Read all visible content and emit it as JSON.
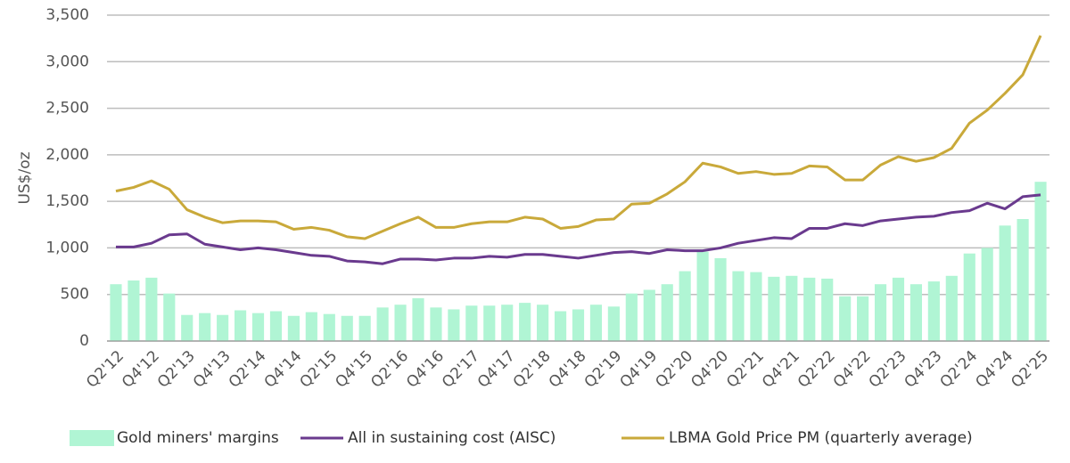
{
  "chart_data": {
    "type": "bar-line",
    "y_label": "US$/oz",
    "categories": [
      "Q2'12",
      null,
      "Q4'12",
      null,
      "Q2'13",
      null,
      "Q4'13",
      null,
      "Q2'14",
      null,
      "Q4'14",
      null,
      "Q2'15",
      null,
      "Q4'15",
      null,
      "Q2'16",
      null,
      "Q4'16",
      null,
      "Q2'17",
      null,
      "Q4'17",
      null,
      "Q2'18",
      null,
      "Q4'18",
      null,
      "Q2'19",
      null,
      "Q4'19",
      null,
      "Q2'20",
      null,
      "Q4'20",
      null,
      "Q2'21",
      null,
      "Q4'21",
      null,
      "Q2'22",
      null,
      "Q4'22",
      null,
      "Q2'23",
      null,
      "Q4'23",
      null,
      "Q2'24",
      null,
      "Q4'24",
      null,
      "Q2'25"
    ],
    "series": [
      {
        "name": "Gold miners' margins",
        "type": "bar",
        "color": "#b0f5d4",
        "values": [
          610,
          650,
          680,
          510,
          280,
          300,
          280,
          330,
          300,
          320,
          270,
          310,
          290,
          270,
          270,
          360,
          390,
          460,
          360,
          340,
          380,
          380,
          390,
          410,
          390,
          320,
          340,
          390,
          370,
          510,
          550,
          610,
          750,
          960,
          890,
          750,
          740,
          690,
          700,
          680,
          670,
          480,
          480,
          610,
          680,
          610,
          640,
          700,
          940,
          1000,
          1240,
          1310,
          1710
        ]
      },
      {
        "name": "All in sustaining cost (AISC)",
        "type": "line",
        "color": "#6a3a8e",
        "values": [
          1010,
          1010,
          1050,
          1140,
          1150,
          1040,
          1010,
          980,
          1000,
          980,
          950,
          920,
          910,
          860,
          850,
          830,
          880,
          880,
          870,
          890,
          890,
          910,
          900,
          930,
          930,
          910,
          890,
          920,
          950,
          960,
          940,
          980,
          970,
          970,
          1000,
          1050,
          1080,
          1110,
          1100,
          1210,
          1210,
          1260,
          1240,
          1290,
          1310,
          1330,
          1340,
          1380,
          1400,
          1480,
          1420,
          1550,
          1570
        ]
      },
      {
        "name": "LBMA Gold Price PM (quarterly average)",
        "type": "line",
        "color": "#c9a93a",
        "values": [
          1610,
          1650,
          1720,
          1630,
          1410,
          1330,
          1270,
          1290,
          1290,
          1280,
          1200,
          1220,
          1190,
          1120,
          1100,
          1180,
          1260,
          1330,
          1220,
          1220,
          1260,
          1280,
          1280,
          1330,
          1310,
          1210,
          1230,
          1300,
          1310,
          1470,
          1480,
          1580,
          1710,
          1910,
          1870,
          1800,
          1820,
          1790,
          1800,
          1880,
          1870,
          1730,
          1730,
          1890,
          1980,
          1930,
          1970,
          2070,
          2340,
          2480,
          2660,
          2860,
          3280
        ]
      }
    ],
    "ylim": [
      0,
      3500
    ],
    "yticks": [
      0,
      500,
      {
        "value": 1000,
        "label": "1,000"
      },
      {
        "value": 1500,
        "label": "1,500"
      },
      {
        "value": 2000,
        "label": "2,000"
      },
      {
        "value": 2500,
        "label": "2,500"
      },
      {
        "value": 3000,
        "label": "3,000"
      },
      {
        "value": 3500,
        "label": "3,500"
      }
    ],
    "grid": true,
    "legend": "bottom"
  }
}
